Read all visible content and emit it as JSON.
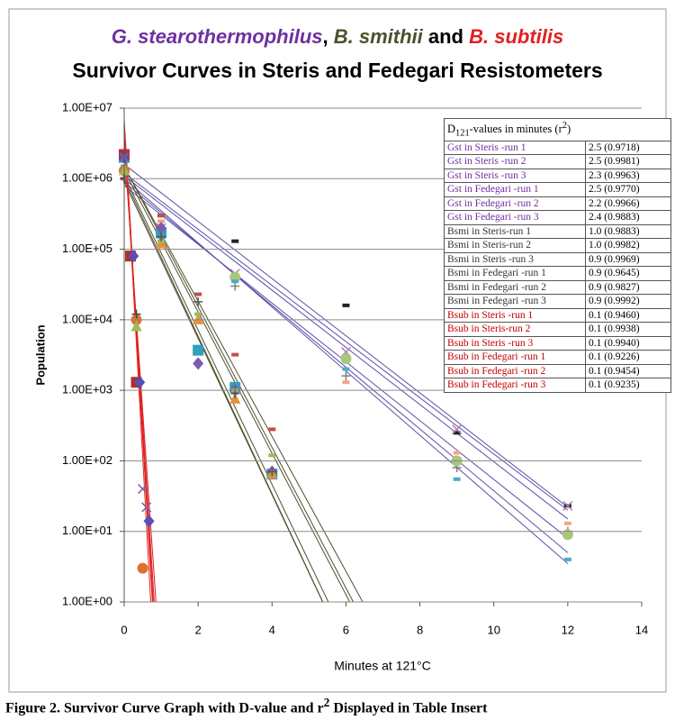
{
  "chart_data": {
    "type": "scatter",
    "title_parts": [
      {
        "text": "G. stearothermophilus",
        "color": "#7030a0",
        "italic": true
      },
      {
        "text": ", ",
        "color": "#000000",
        "italic": false
      },
      {
        "text": "B. smithii",
        "color": "#4f4f2f",
        "italic": true
      },
      {
        "text": " and ",
        "color": "#000000",
        "italic": false
      },
      {
        "text": "B. subtilis",
        "color": "#e02020",
        "italic": true
      }
    ],
    "subtitle": "Survivor Curves in Steris and Fedegari Resistometers",
    "x_label": "Minutes at 121°C",
    "y_label": "Population",
    "caption_parts": [
      "Figure 2. Survivor Curve Graph with D-value and r",
      "2",
      " Displayed in Table Insert"
    ],
    "table_header_parts": [
      "D",
      "121",
      "-values in minutes (r",
      "2",
      ")"
    ],
    "log_y": true,
    "grid": true,
    "xlim": [
      0,
      14
    ],
    "xticks": [
      0,
      2,
      4,
      6,
      8,
      10,
      12,
      14
    ],
    "ylim": [
      1,
      10000000
    ],
    "yticks": [
      {
        "value": 1,
        "label": "1.00E+00"
      },
      {
        "value": 10,
        "label": "1.00E+01"
      },
      {
        "value": 100,
        "label": "1.00E+02"
      },
      {
        "value": 1000,
        "label": "1.00E+03"
      },
      {
        "value": 10000,
        "label": "1.00E+04"
      },
      {
        "value": 100000,
        "label": "1.00E+05"
      },
      {
        "value": 1000000,
        "label": "1.00E+06"
      },
      {
        "value": 10000000,
        "label": "1.00E+07"
      }
    ],
    "series": [
      {
        "name": "Gst in Steris -run 1",
        "d_value": "2.5 (0.9718)",
        "color": "#7030a0",
        "line_color": "#5b4fa8",
        "marker": "dash",
        "marker_color": "#222222",
        "x": [
          0,
          1,
          3,
          6,
          9,
          12
        ],
        "values": [
          2200000,
          300000,
          130000,
          16000,
          250,
          23
        ],
        "fit": {
          "x": [
            0,
            12
          ],
          "values": [
            1600000,
            22
          ]
        }
      },
      {
        "name": "Gst in Steris -run 2",
        "d_value": "2.5 (0.9981)",
        "color": "#7030a0",
        "line_color": "#5b4fa8",
        "marker": "x",
        "marker_color": "#b07fb0",
        "x": [
          0,
          1,
          3,
          6,
          9,
          12
        ],
        "values": [
          2000000,
          200000,
          45000,
          3500,
          280,
          23
        ],
        "fit": {
          "x": [
            0,
            12
          ],
          "values": [
            1200000,
            20
          ]
        }
      },
      {
        "name": "Gst in Steris -run 3",
        "d_value": "2.3 (0.9963)",
        "color": "#7030a0",
        "line_color": "#5b4fa8",
        "marker": "plus",
        "marker_color": "#7f7f7f",
        "x": [
          0,
          1,
          3,
          6,
          9,
          12
        ],
        "values": [
          1300000,
          150000,
          30000,
          1600,
          80,
          10
        ],
        "fit": {
          "x": [
            0,
            12
          ],
          "values": [
            900000,
            5
          ]
        }
      },
      {
        "name": "Gst in Fedegari -run 1",
        "d_value": "2.5 (0.9770)",
        "color": "#7030a0",
        "line_color": "#5b4fa8",
        "marker": "dash",
        "marker_color": "#f4a582",
        "x": [
          0,
          1,
          3,
          6,
          9,
          12
        ],
        "values": [
          1200000,
          250000,
          40000,
          1300,
          130,
          13
        ],
        "fit": {
          "x": [
            0,
            12
          ],
          "values": [
            1100000,
            15
          ]
        }
      },
      {
        "name": "Gst in Fedegari -run 2",
        "d_value": "2.2 (0.9966)",
        "color": "#7030a0",
        "line_color": "#5b4fa8",
        "marker": "circle",
        "marker_color": "#a9c77a",
        "x": [
          0,
          1,
          3,
          6,
          9,
          12
        ],
        "values": [
          1300000,
          180000,
          40000,
          2800,
          100,
          9
        ],
        "fit": {
          "x": [
            0,
            12
          ],
          "values": [
            1000000,
            3.5
          ]
        }
      },
      {
        "name": "Gst in Fedegari -run 3",
        "d_value": "2.4 (0.9883)",
        "color": "#7030a0",
        "line_color": "#5b4fa8",
        "marker": "dash",
        "marker_color": "#4bacc6",
        "x": [
          0,
          1,
          3,
          6,
          9,
          12
        ],
        "values": [
          1500000,
          160000,
          35000,
          2000,
          55,
          4
        ],
        "fit": {
          "x": [
            0,
            12
          ],
          "values": [
            800000,
            8
          ]
        }
      },
      {
        "name": "Bsmi in Steris-run 1",
        "d_value": "1.0 (0.9883)",
        "color": "#333333",
        "line_color": "#4f4f2f",
        "marker": "square",
        "marker_color": "#31a0b8",
        "x": [
          0,
          1,
          2,
          3,
          4
        ],
        "values": [
          2000000,
          170000,
          3700,
          1100,
          65
        ],
        "fit": {
          "x": [
            0,
            6.5
          ],
          "values": [
            1500000,
            0.5
          ]
        }
      },
      {
        "name": "Bsmi in Steris-run 2",
        "d_value": "1.0 (0.9982)",
        "color": "#333333",
        "line_color": "#4f4f2f",
        "marker": "diamond",
        "marker_color": "#7f5ab0",
        "x": [
          0,
          1,
          2,
          3,
          4
        ],
        "values": [
          2000000,
          200000,
          2400,
          1000,
          70
        ],
        "fit": {
          "x": [
            0,
            6.5
          ],
          "values": [
            1300000,
            0.4
          ]
        }
      },
      {
        "name": "Bsmi in Steris -run 3",
        "d_value": "0.9 (0.9969)",
        "color": "#333333",
        "line_color": "#4f4f2f",
        "marker": "triangle",
        "marker_color": "#e8913a",
        "x": [
          0,
          1,
          2,
          3,
          4
        ],
        "values": [
          1300000,
          120000,
          10000,
          750,
          65
        ],
        "fit": {
          "x": [
            0,
            6
          ],
          "values": [
            1000000,
            0.2
          ]
        }
      },
      {
        "name": "Bsmi in Fedegari -run 1",
        "d_value": "0.9 (0.9645)",
        "color": "#333333",
        "line_color": "#4f4f2f",
        "marker": "dash",
        "marker_color": "#9bbb59",
        "x": [
          0,
          1,
          2,
          3,
          4
        ],
        "values": [
          1200000,
          130000,
          12000,
          1000,
          120
        ],
        "fit": {
          "x": [
            0,
            6
          ],
          "values": [
            900000,
            0.2
          ]
        }
      },
      {
        "name": "Bsmi in Fedegari -run 2",
        "d_value": "0.9 (0.9827)",
        "color": "#333333",
        "line_color": "#4f4f2f",
        "marker": "dash",
        "marker_color": "#c0504d",
        "x": [
          0,
          1,
          2,
          3,
          4
        ],
        "values": [
          1000000,
          300000,
          23000,
          3200,
          280
        ],
        "fit": {
          "x": [
            0,
            6.5
          ],
          "values": [
            1500000,
            0.9
          ]
        }
      },
      {
        "name": "Bsmi in Fedegari -run 3",
        "d_value": "0.9 (0.9992)",
        "color": "#333333",
        "line_color": "#4f4f2f",
        "marker": "plus",
        "marker_color": "#555555",
        "x": [
          0,
          1,
          2,
          3,
          4
        ],
        "values": [
          1000000,
          150000,
          18000,
          900,
          70
        ],
        "fit": {
          "x": [
            0,
            6
          ],
          "values": [
            1100000,
            0.3
          ]
        }
      },
      {
        "name": "Bsub in Steris -run 1",
        "d_value": "0.1 (0.9460)",
        "color": "#c00000",
        "line_color": "#e02020",
        "marker": "square",
        "marker_color": "#b03030",
        "x": [
          0,
          0.17,
          0.33
        ],
        "values": [
          2200000,
          80000,
          1300
        ],
        "fit": {
          "x": [
            0,
            0.8
          ],
          "values": [
            5000000,
            0.5
          ]
        }
      },
      {
        "name": "Bsub in Steris-run 2",
        "d_value": "0.1 (0.9938)",
        "color": "#c00000",
        "line_color": "#e02020",
        "marker": "diamond",
        "marker_color": "#5a4fb0",
        "x": [
          0,
          0.25,
          0.42,
          0.67
        ],
        "values": [
          2000000,
          80000,
          1300,
          14
        ],
        "fit": {
          "x": [
            0,
            0.85
          ],
          "values": [
            4000000,
            0.5
          ]
        }
      },
      {
        "name": "Bsub in Steris -run 3",
        "d_value": "0.1 (0.9940)",
        "color": "#c00000",
        "line_color": "#e02020",
        "marker": "circle",
        "marker_color": "#e07030",
        "x": [
          0,
          0.33,
          0.5
        ],
        "values": [
          1300000,
          10000,
          3
        ],
        "fit": {
          "x": [
            0,
            0.75
          ],
          "values": [
            6000000,
            0.5
          ]
        }
      },
      {
        "name": "Bsub in Fedegari -run 1",
        "d_value": "0.1 (0.9226)",
        "color": "#c00000",
        "line_color": "#e02020",
        "marker": "x",
        "marker_color": "#8064a2",
        "x": [
          0,
          0.5,
          0.6
        ],
        "values": [
          2000000,
          40,
          22
        ],
        "fit": {
          "x": [
            0,
            0.9
          ],
          "values": [
            3000000,
            0.5
          ]
        }
      },
      {
        "name": "Bsub in Fedegari -run 2",
        "d_value": "0.1 (0.9454)",
        "color": "#c00000",
        "line_color": "#e02020",
        "marker": "triangle",
        "marker_color": "#9bbb59",
        "x": [
          0,
          0.33
        ],
        "values": [
          1300000,
          8000
        ],
        "fit": {
          "x": [
            0,
            0.8
          ],
          "values": [
            7000000,
            0.5
          ]
        }
      },
      {
        "name": "Bsub in Fedegari -run 3",
        "d_value": "0.1 (0.9235)",
        "color": "#c00000",
        "line_color": "#e02020",
        "marker": "plus",
        "marker_color": "#444444",
        "x": [
          0,
          0.33
        ],
        "values": [
          1000000,
          12000
        ],
        "fit": {
          "x": [
            0,
            0.82
          ],
          "values": [
            5000000,
            0.5
          ]
        }
      }
    ]
  }
}
